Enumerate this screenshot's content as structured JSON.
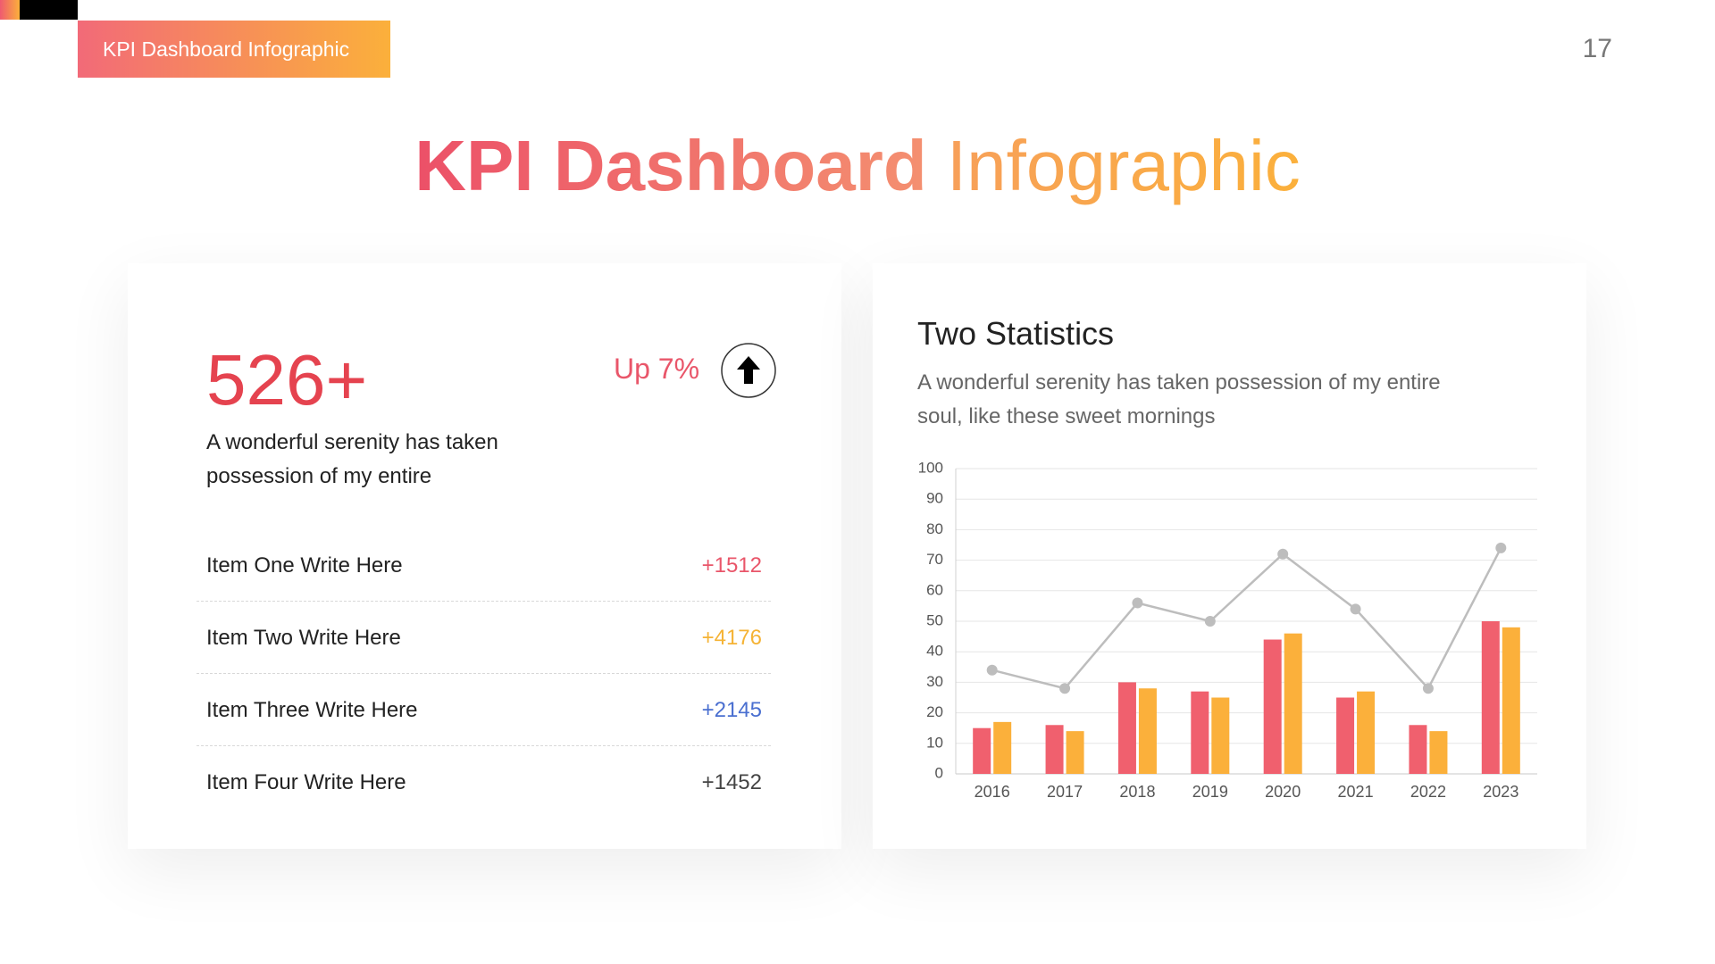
{
  "header": {
    "tag": "KPI Dashboard Infographic",
    "page_number": "17"
  },
  "title": {
    "bold": "KPI Dashboard",
    "regular": "Infographic"
  },
  "summary": {
    "figure": "526+",
    "change": "Up 7%",
    "description": [
      "A wonderful serenity has taken",
      "possession of my entire"
    ],
    "items": [
      {
        "label": "Item One Write Here",
        "value": "+1512"
      },
      {
        "label": "Item Two Write Here",
        "value": "+4176"
      },
      {
        "label": "Item Three Write Here",
        "value": "+2145"
      },
      {
        "label": "Item Four Write Here",
        "value": "+1452"
      }
    ]
  },
  "chart_data": {
    "type": "combo",
    "title": "Two Statistics",
    "subtitle": [
      "A wonderful serenity has taken possession of my entire",
      "soul, like these sweet mornings"
    ],
    "categories": [
      "2016",
      "2017",
      "2018",
      "2019",
      "2020",
      "2021",
      "2022",
      "2023"
    ],
    "series": [
      {
        "type": "bar",
        "color": "#f0606e",
        "values": [
          15,
          16,
          30,
          27,
          44,
          25,
          16,
          50
        ]
      },
      {
        "type": "bar",
        "color": "#fbb03b",
        "values": [
          17,
          14,
          28,
          25,
          46,
          27,
          14,
          48
        ]
      },
      {
        "type": "line",
        "color": "#bdbdbd",
        "values": [
          34,
          28,
          56,
          50,
          72,
          54,
          28,
          74
        ]
      }
    ],
    "ylim": [
      0,
      100
    ],
    "yticks": [
      0,
      10,
      20,
      30,
      40,
      50,
      60,
      70,
      80,
      90,
      100
    ],
    "grid": true
  }
}
